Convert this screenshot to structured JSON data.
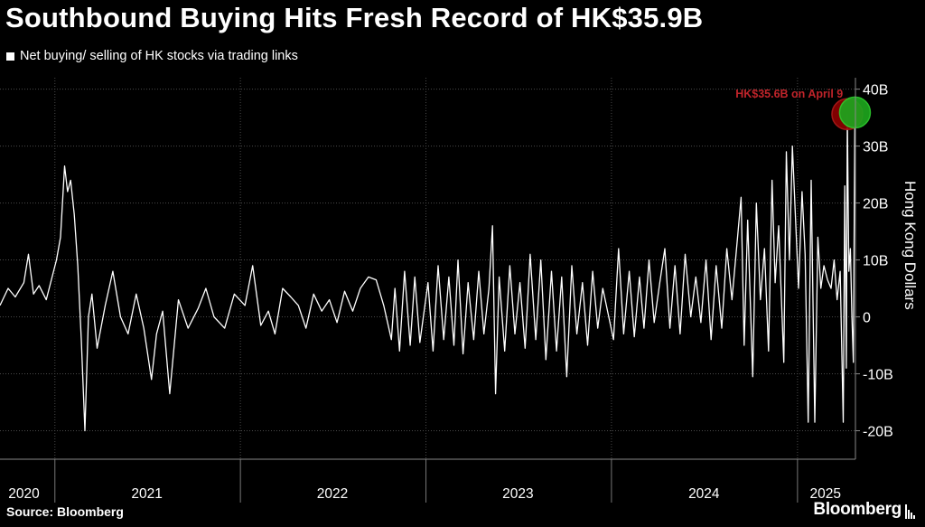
{
  "header": {
    "title": "Southbound Buying Hits Fresh Record of HK$35.9B",
    "subtitle": "Net buying/ selling of HK stocks via trading links"
  },
  "footer": {
    "source": "Source: Bloomberg",
    "brand": "Bloomberg"
  },
  "chart_data": {
    "type": "line",
    "title": "Southbound Buying Hits Fresh Record of HK$35.9B",
    "subtitle": "Net buying/ selling of HK stocks via trading links",
    "ylabel": "Hong Kong Dollars",
    "ylim": [
      -25,
      42
    ],
    "y_ticks": [
      40,
      30,
      20,
      10,
      0,
      -10,
      -20
    ],
    "y_tick_labels": [
      "40B",
      "30B",
      "20B",
      "10B",
      "0",
      "-10B",
      "-20B"
    ],
    "x_range": [
      "2020-09-15",
      "2025-04-25"
    ],
    "year_labels": [
      {
        "label": "2020",
        "at": "2020-11-01"
      },
      {
        "label": "2021",
        "at": "2021-07-01"
      },
      {
        "label": "2022",
        "at": "2022-07-01"
      },
      {
        "label": "2023",
        "at": "2023-07-01"
      },
      {
        "label": "2024",
        "at": "2024-07-01"
      },
      {
        "label": "2025",
        "at": "2025-02-25"
      }
    ],
    "year_boundaries": [
      "2021-01-01",
      "2022-01-01",
      "2023-01-01",
      "2024-01-01",
      "2025-01-01"
    ],
    "grid": true,
    "legend": "top-left",
    "colors": {
      "line": "#ffffff",
      "grid": "#4a4a4a",
      "annotation": "#c0242a",
      "marker_red": "#8b0000",
      "marker_green": "#1ea51e"
    },
    "series": [
      {
        "name": "Net buying/ selling of HK stocks via trading links",
        "points": [
          [
            "2020-09-15",
            2.0
          ],
          [
            "2020-10-01",
            5.0
          ],
          [
            "2020-10-15",
            3.5
          ],
          [
            "2020-11-01",
            6.0
          ],
          [
            "2020-11-10",
            11.0
          ],
          [
            "2020-11-20",
            4.0
          ],
          [
            "2020-12-01",
            5.5
          ],
          [
            "2020-12-15",
            3.0
          ],
          [
            "2021-01-04",
            10.0
          ],
          [
            "2021-01-12",
            14.0
          ],
          [
            "2021-01-20",
            26.5
          ],
          [
            "2021-01-26",
            22.0
          ],
          [
            "2021-02-01",
            24.0
          ],
          [
            "2021-02-08",
            18.0
          ],
          [
            "2021-02-15",
            9.0
          ],
          [
            "2021-02-22",
            -4.0
          ],
          [
            "2021-03-01",
            -20.0
          ],
          [
            "2021-03-08",
            0.0
          ],
          [
            "2021-03-15",
            4.0
          ],
          [
            "2021-03-25",
            -5.5
          ],
          [
            "2021-04-10",
            2.0
          ],
          [
            "2021-04-25",
            8.0
          ],
          [
            "2021-05-10",
            0.0
          ],
          [
            "2021-05-25",
            -3.0
          ],
          [
            "2021-06-10",
            4.0
          ],
          [
            "2021-06-25",
            -2.0
          ],
          [
            "2021-07-10",
            -11.0
          ],
          [
            "2021-07-20",
            -3.0
          ],
          [
            "2021-08-01",
            1.0
          ],
          [
            "2021-08-15",
            -13.5
          ],
          [
            "2021-09-01",
            3.0
          ],
          [
            "2021-09-20",
            -2.0
          ],
          [
            "2021-10-10",
            1.5
          ],
          [
            "2021-10-25",
            5.0
          ],
          [
            "2021-11-10",
            0.0
          ],
          [
            "2021-12-01",
            -2.0
          ],
          [
            "2021-12-20",
            4.0
          ],
          [
            "2022-01-10",
            2.0
          ],
          [
            "2022-01-25",
            9.0
          ],
          [
            "2022-02-10",
            -1.5
          ],
          [
            "2022-02-25",
            1.0
          ],
          [
            "2022-03-10",
            -3.0
          ],
          [
            "2022-03-25",
            5.0
          ],
          [
            "2022-04-10",
            3.5
          ],
          [
            "2022-04-25",
            2.0
          ],
          [
            "2022-05-10",
            -2.0
          ],
          [
            "2022-05-25",
            4.0
          ],
          [
            "2022-06-10",
            1.0
          ],
          [
            "2022-06-25",
            3.0
          ],
          [
            "2022-07-10",
            -1.0
          ],
          [
            "2022-07-25",
            4.5
          ],
          [
            "2022-08-10",
            1.0
          ],
          [
            "2022-08-25",
            5.0
          ],
          [
            "2022-09-10",
            7.0
          ],
          [
            "2022-09-25",
            6.5
          ],
          [
            "2022-10-10",
            2.0
          ],
          [
            "2022-10-25",
            -4.0
          ],
          [
            "2022-11-01",
            5.0
          ],
          [
            "2022-11-10",
            -6.0
          ],
          [
            "2022-11-20",
            8.0
          ],
          [
            "2022-12-01",
            -5.0
          ],
          [
            "2022-12-10",
            7.0
          ],
          [
            "2022-12-20",
            -4.5
          ],
          [
            "2023-01-05",
            6.0
          ],
          [
            "2023-01-15",
            -6.0
          ],
          [
            "2023-01-25",
            9.0
          ],
          [
            "2023-02-05",
            -4.0
          ],
          [
            "2023-02-15",
            7.0
          ],
          [
            "2023-02-25",
            -5.0
          ],
          [
            "2023-03-05",
            10.0
          ],
          [
            "2023-03-15",
            -6.5
          ],
          [
            "2023-03-25",
            6.0
          ],
          [
            "2023-04-05",
            -4.0
          ],
          [
            "2023-04-15",
            8.0
          ],
          [
            "2023-04-25",
            -3.0
          ],
          [
            "2023-05-05",
            5.0
          ],
          [
            "2023-05-12",
            16.0
          ],
          [
            "2023-05-18",
            -13.5
          ],
          [
            "2023-05-25",
            7.0
          ],
          [
            "2023-06-05",
            -6.0
          ],
          [
            "2023-06-15",
            9.0
          ],
          [
            "2023-06-25",
            -3.0
          ],
          [
            "2023-07-05",
            6.0
          ],
          [
            "2023-07-15",
            -5.5
          ],
          [
            "2023-07-25",
            11.0
          ],
          [
            "2023-08-05",
            -4.0
          ],
          [
            "2023-08-15",
            10.0
          ],
          [
            "2023-08-25",
            -7.5
          ],
          [
            "2023-09-05",
            8.0
          ],
          [
            "2023-09-15",
            -6.0
          ],
          [
            "2023-09-25",
            7.0
          ],
          [
            "2023-10-05",
            -10.5
          ],
          [
            "2023-10-15",
            9.0
          ],
          [
            "2023-10-25",
            -3.0
          ],
          [
            "2023-11-05",
            6.0
          ],
          [
            "2023-11-15",
            -5.0
          ],
          [
            "2023-11-25",
            8.0
          ],
          [
            "2023-12-05",
            -2.0
          ],
          [
            "2023-12-15",
            5.0
          ],
          [
            "2024-01-05",
            -4.0
          ],
          [
            "2024-01-15",
            12.0
          ],
          [
            "2024-01-25",
            -3.0
          ],
          [
            "2024-02-05",
            8.0
          ],
          [
            "2024-02-15",
            -3.5
          ],
          [
            "2024-02-25",
            7.0
          ],
          [
            "2024-03-05",
            -2.0
          ],
          [
            "2024-03-15",
            10.0
          ],
          [
            "2024-03-25",
            -1.0
          ],
          [
            "2024-04-05",
            6.0
          ],
          [
            "2024-04-15",
            12.0
          ],
          [
            "2024-04-25",
            -2.0
          ],
          [
            "2024-05-05",
            9.0
          ],
          [
            "2024-05-15",
            -3.0
          ],
          [
            "2024-05-25",
            11.0
          ],
          [
            "2024-06-05",
            0.0
          ],
          [
            "2024-06-15",
            7.0
          ],
          [
            "2024-06-25",
            -1.0
          ],
          [
            "2024-07-05",
            10.0
          ],
          [
            "2024-07-15",
            -4.0
          ],
          [
            "2024-07-25",
            9.0
          ],
          [
            "2024-08-05",
            -2.0
          ],
          [
            "2024-08-15",
            12.0
          ],
          [
            "2024-08-25",
            3.0
          ],
          [
            "2024-09-05",
            14.0
          ],
          [
            "2024-09-12",
            21.0
          ],
          [
            "2024-09-18",
            -5.0
          ],
          [
            "2024-09-25",
            17.0
          ],
          [
            "2024-10-05",
            -10.5
          ],
          [
            "2024-10-12",
            20.0
          ],
          [
            "2024-10-20",
            3.0
          ],
          [
            "2024-10-28",
            12.0
          ],
          [
            "2024-11-05",
            -6.0
          ],
          [
            "2024-11-12",
            24.0
          ],
          [
            "2024-11-18",
            6.0
          ],
          [
            "2024-11-25",
            16.0
          ],
          [
            "2024-12-05",
            -8.0
          ],
          [
            "2024-12-10",
            29.0
          ],
          [
            "2024-12-16",
            10.0
          ],
          [
            "2024-12-22",
            30.0
          ],
          [
            "2025-01-03",
            5.0
          ],
          [
            "2025-01-10",
            22.0
          ],
          [
            "2025-01-16",
            11.0
          ],
          [
            "2025-01-22",
            -18.5
          ],
          [
            "2025-01-28",
            24.0
          ],
          [
            "2025-02-04",
            -18.5
          ],
          [
            "2025-02-10",
            14.0
          ],
          [
            "2025-02-16",
            5.0
          ],
          [
            "2025-02-22",
            9.0
          ],
          [
            "2025-03-01",
            6.5
          ],
          [
            "2025-03-08",
            5.0
          ],
          [
            "2025-03-14",
            10.0
          ],
          [
            "2025-03-20",
            3.0
          ],
          [
            "2025-03-26",
            8.0
          ],
          [
            "2025-04-01",
            -18.5
          ],
          [
            "2025-04-04",
            23.0
          ],
          [
            "2025-04-07",
            -9.0
          ],
          [
            "2025-04-09",
            35.6
          ],
          [
            "2025-04-12",
            8.0
          ],
          [
            "2025-04-15",
            12.0
          ],
          [
            "2025-04-18",
            0.0
          ],
          [
            "2025-04-21",
            -8.0
          ],
          [
            "2025-04-24",
            35.9
          ]
        ]
      }
    ],
    "markers": [
      {
        "date": "2025-04-09",
        "value": 35.6,
        "color": "red"
      },
      {
        "date": "2025-04-24",
        "value": 35.9,
        "color": "green"
      }
    ],
    "annotations": [
      {
        "text": "HK$35.6B on April 9",
        "date": "2024-09-01",
        "value": 38.5
      }
    ]
  }
}
